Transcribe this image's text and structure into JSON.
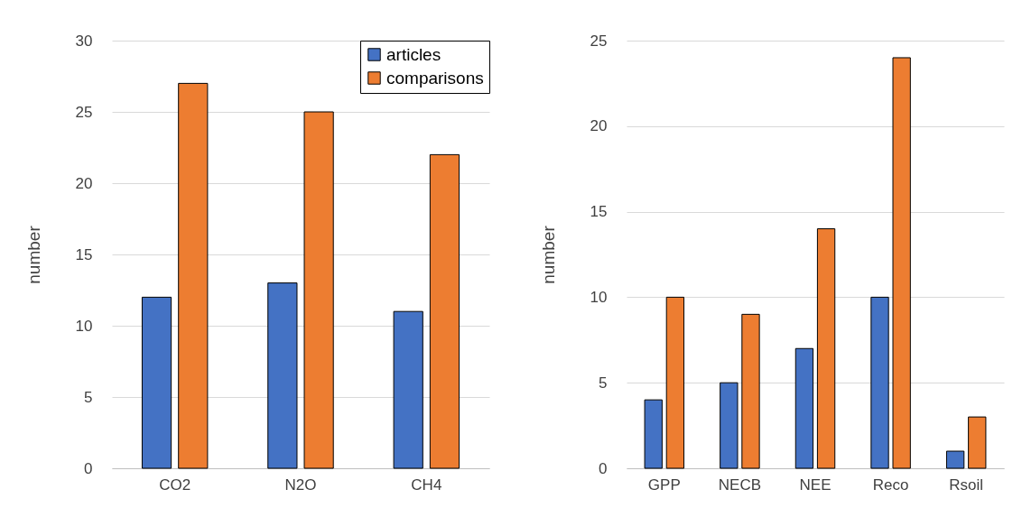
{
  "chart_data": [
    {
      "type": "bar",
      "ylabel": "number",
      "categories": [
        "CO2",
        "N2O",
        "CH4"
      ],
      "series": [
        {
          "name": "articles",
          "color": "#4472c4",
          "values": [
            12,
            13,
            11
          ]
        },
        {
          "name": "comparisons",
          "color": "#ed7d31",
          "values": [
            27,
            25,
            22
          ]
        }
      ],
      "ylim": [
        0,
        30
      ],
      "yticks": [
        0,
        5,
        10,
        15,
        20,
        25,
        30
      ],
      "grid": "y",
      "legend": "top right"
    },
    {
      "type": "bar",
      "ylabel": "number",
      "categories": [
        "GPP",
        "NECB",
        "NEE",
        "Reco",
        "Rsoil"
      ],
      "series": [
        {
          "color": "#4472c4",
          "values": [
            4,
            5,
            7,
            10,
            1
          ]
        },
        {
          "color": "#ed7d31",
          "values": [
            10,
            9,
            14,
            24,
            3
          ]
        }
      ],
      "ylim": [
        0,
        25
      ],
      "yticks": [
        0,
        5,
        10,
        15,
        20,
        25
      ],
      "grid": "y"
    }
  ]
}
